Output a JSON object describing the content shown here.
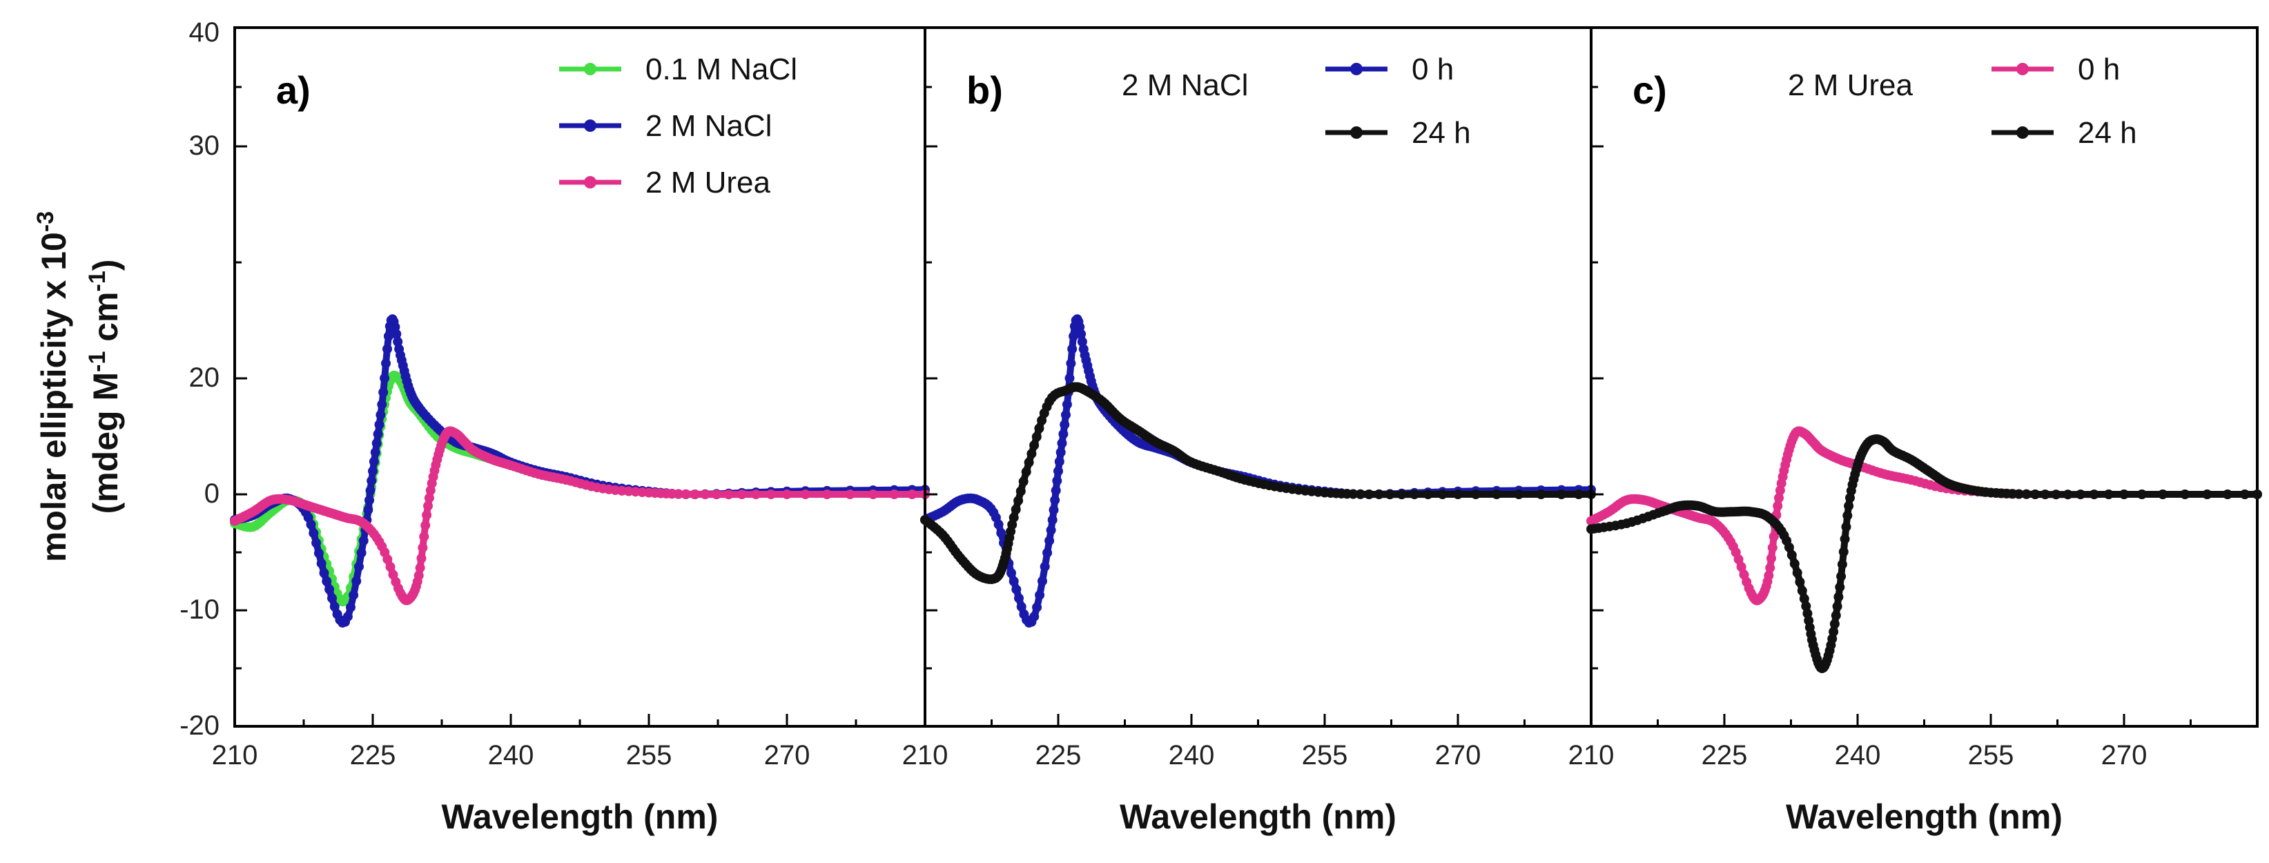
{
  "figure": {
    "ylabel_line1": "molar ellipticity x 10",
    "ylabel_line1_sup": "-3",
    "ylabel_line2_a": "(mdeg M",
    "ylabel_line2_sup1": "-1",
    "ylabel_line2_b": " cm",
    "ylabel_line2_sup2": "-1",
    "ylabel_line2_c": ")",
    "yticks": [
      "-20",
      "-10",
      "0",
      "20",
      "30",
      "40"
    ]
  },
  "colors": {
    "green": "#44dd44",
    "blue": "#1a1aaa",
    "magenta": "#e0308a",
    "black": "#111111"
  },
  "chart_data": [
    {
      "type": "line",
      "panel_label": "a)",
      "condition_label": "",
      "xlabel": "Wavelength (nm)",
      "ylabel": "molar ellipticity x 10-3 (mdeg M-1 cm-1)",
      "xlim": [
        210,
        285
      ],
      "ylim": [
        -20,
        40
      ],
      "xticks": [
        "210",
        "225",
        "240",
        "255",
        "270"
      ],
      "legend_position": "top-right",
      "series": [
        {
          "name": "0.1 M NaCl",
          "color": "#44dd44",
          "x": [
            210,
            212,
            214,
            216,
            218,
            220,
            222,
            224,
            225,
            226,
            227,
            228,
            229,
            230,
            232,
            234,
            236,
            238,
            240,
            243,
            246,
            250,
            255,
            260,
            270,
            285
          ],
          "y": [
            -2.5,
            -2.8,
            -1.5,
            -0.5,
            -1.5,
            -6,
            -9.2,
            -3,
            2.5,
            13,
            20,
            19.5,
            16,
            14,
            10,
            8,
            7,
            6,
            5,
            3.5,
            2.5,
            1,
            0.3,
            0,
            0.3,
            0.5
          ]
        },
        {
          "name": "2 M NaCl",
          "color": "#1a1aaa",
          "x": [
            210,
            212,
            214,
            216,
            218,
            220,
            222,
            224,
            225,
            226,
            227,
            228,
            229,
            230,
            232,
            234,
            236,
            238,
            240,
            243,
            246,
            250,
            255,
            260,
            270,
            285
          ],
          "y": [
            -2.2,
            -1.8,
            -0.8,
            -0.4,
            -2,
            -7.5,
            -11,
            -4,
            4,
            15.5,
            22.5,
            21,
            18,
            15,
            11.5,
            9,
            8,
            7,
            5.5,
            4,
            3,
            1.5,
            0.5,
            0,
            0.5,
            0.8
          ]
        },
        {
          "name": "2 M Urea",
          "color": "#e0308a",
          "x": [
            210,
            212,
            214,
            216,
            218,
            220,
            222,
            224,
            226,
            228,
            229,
            230,
            231,
            232,
            233,
            234,
            235,
            236,
            238,
            240,
            243,
            246,
            250,
            255,
            260,
            270,
            285
          ],
          "y": [
            -2.3,
            -1.5,
            -0.5,
            -0.5,
            -1,
            -1.5,
            -2,
            -2.5,
            -4.5,
            -8.5,
            -9,
            -7,
            -1,
            6,
            10.5,
            10.5,
            9,
            7.5,
            6,
            5,
            3.5,
            2.5,
            1,
            0.3,
            0,
            0,
            0
          ]
        }
      ]
    },
    {
      "type": "line",
      "panel_label": "b)",
      "condition_label": "2 M NaCl",
      "xlabel": "Wavelength (nm)",
      "ylabel": "",
      "xlim": [
        210,
        285
      ],
      "ylim": [
        -20,
        40
      ],
      "xticks": [
        "210",
        "225",
        "240",
        "255",
        "270"
      ],
      "legend_position": "top-right",
      "series": [
        {
          "name": "0 h",
          "color": "#1a1aaa",
          "x": [
            210,
            212,
            214,
            216,
            218,
            220,
            222,
            224,
            225,
            226,
            227,
            228,
            229,
            230,
            232,
            234,
            236,
            238,
            240,
            243,
            246,
            250,
            255,
            260,
            270,
            285
          ],
          "y": [
            -2.2,
            -1.5,
            -0.5,
            -0.5,
            -2,
            -7.5,
            -11,
            -4,
            4,
            15.5,
            22.5,
            21,
            18,
            15,
            11.5,
            9,
            8,
            7,
            5.5,
            4,
            3,
            1.5,
            0.5,
            0,
            0.5,
            0.8
          ]
        },
        {
          "name": "24 h",
          "color": "#111111",
          "x": [
            210,
            212,
            214,
            216,
            218,
            219,
            220,
            222,
            224,
            226,
            227,
            228,
            230,
            232,
            234,
            236,
            238,
            240,
            243,
            246,
            250,
            255,
            260,
            270,
            285
          ],
          "y": [
            -2.2,
            -3.5,
            -5.5,
            -7,
            -7.2,
            -5.5,
            -2,
            7,
            16,
            18,
            18.5,
            18,
            16,
            13,
            11,
            9,
            7.5,
            5.5,
            4,
            2.5,
            1.2,
            0.3,
            0,
            0,
            0
          ]
        }
      ]
    },
    {
      "type": "line",
      "panel_label": "c)",
      "condition_label": "2 M Urea",
      "xlabel": "Wavelength (nm)",
      "ylabel": "",
      "xlim": [
        210,
        285
      ],
      "ylim": [
        -20,
        40
      ],
      "xticks": [
        "210",
        "225",
        "240",
        "255",
        "270"
      ],
      "legend_position": "top-right",
      "series": [
        {
          "name": "0 h",
          "color": "#e0308a",
          "x": [
            210,
            212,
            214,
            216,
            218,
            220,
            222,
            224,
            226,
            228,
            229,
            230,
            231,
            232,
            233,
            234,
            235,
            236,
            238,
            240,
            243,
            246,
            250,
            255,
            260,
            270,
            285
          ],
          "y": [
            -2.3,
            -1.5,
            -0.5,
            -0.5,
            -1,
            -1.5,
            -2,
            -2.5,
            -4.5,
            -8.5,
            -9,
            -7,
            -1,
            6,
            10.5,
            10.5,
            9,
            7.5,
            6,
            5,
            3.5,
            2.5,
            1,
            0.3,
            0,
            0,
            0
          ]
        },
        {
          "name": "24 h",
          "color": "#111111",
          "x": [
            210,
            214,
            218,
            220,
            222,
            224,
            226,
            228,
            230,
            232,
            234,
            235,
            236,
            237,
            238,
            239,
            240,
            241,
            242,
            243,
            244,
            246,
            248,
            250,
            252,
            255,
            260,
            270,
            285
          ],
          "y": [
            -3,
            -2.5,
            -1.5,
            -1,
            -1,
            -1.5,
            -1.5,
            -1.5,
            -2,
            -4,
            -9,
            -13,
            -15,
            -13,
            -8,
            -1,
            5,
            8.5,
            9.5,
            9,
            7.5,
            6,
            4,
            2,
            1,
            0.3,
            0,
            0,
            0
          ]
        }
      ]
    }
  ]
}
